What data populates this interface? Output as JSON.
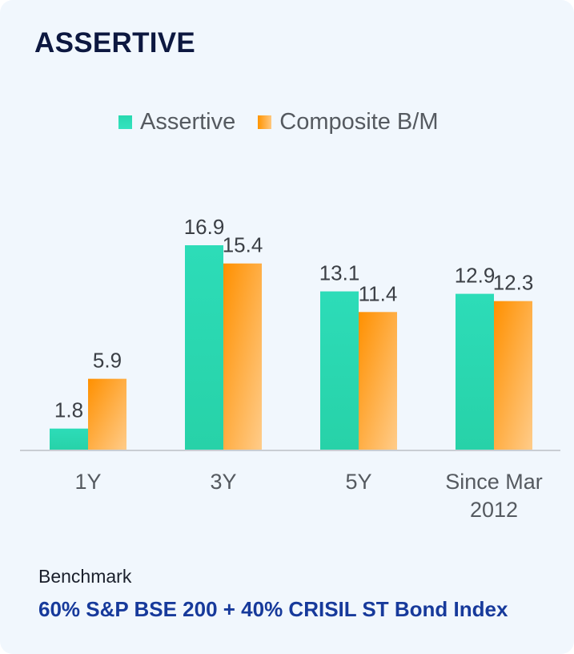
{
  "title": "ASSERTIVE",
  "colors": {
    "assertive": "#2ddcb8",
    "composite": "#ff9c1f",
    "title": "#0d1840",
    "benchmark_value": "#173a9b",
    "background": "#f1f7fd"
  },
  "chart_data": {
    "type": "bar",
    "categories": [
      "1Y",
      "3Y",
      "5Y",
      "Since Mar 2012"
    ],
    "category_lines": [
      [
        "1Y"
      ],
      [
        "3Y"
      ],
      [
        "5Y"
      ],
      [
        "Since Mar",
        "2012"
      ]
    ],
    "series": [
      {
        "name": "Assertive",
        "values": [
          1.8,
          16.9,
          13.1,
          12.9
        ]
      },
      {
        "name": "Composite B/M",
        "values": [
          5.9,
          15.4,
          11.4,
          12.3
        ]
      }
    ],
    "ylim": [
      0,
      16.9
    ],
    "grid": false,
    "legend_position": "top-center",
    "data_labels": true
  },
  "benchmark": {
    "label": "Benchmark",
    "value": "60% S&P BSE 200 + 40% CRISIL ST Bond Index"
  }
}
